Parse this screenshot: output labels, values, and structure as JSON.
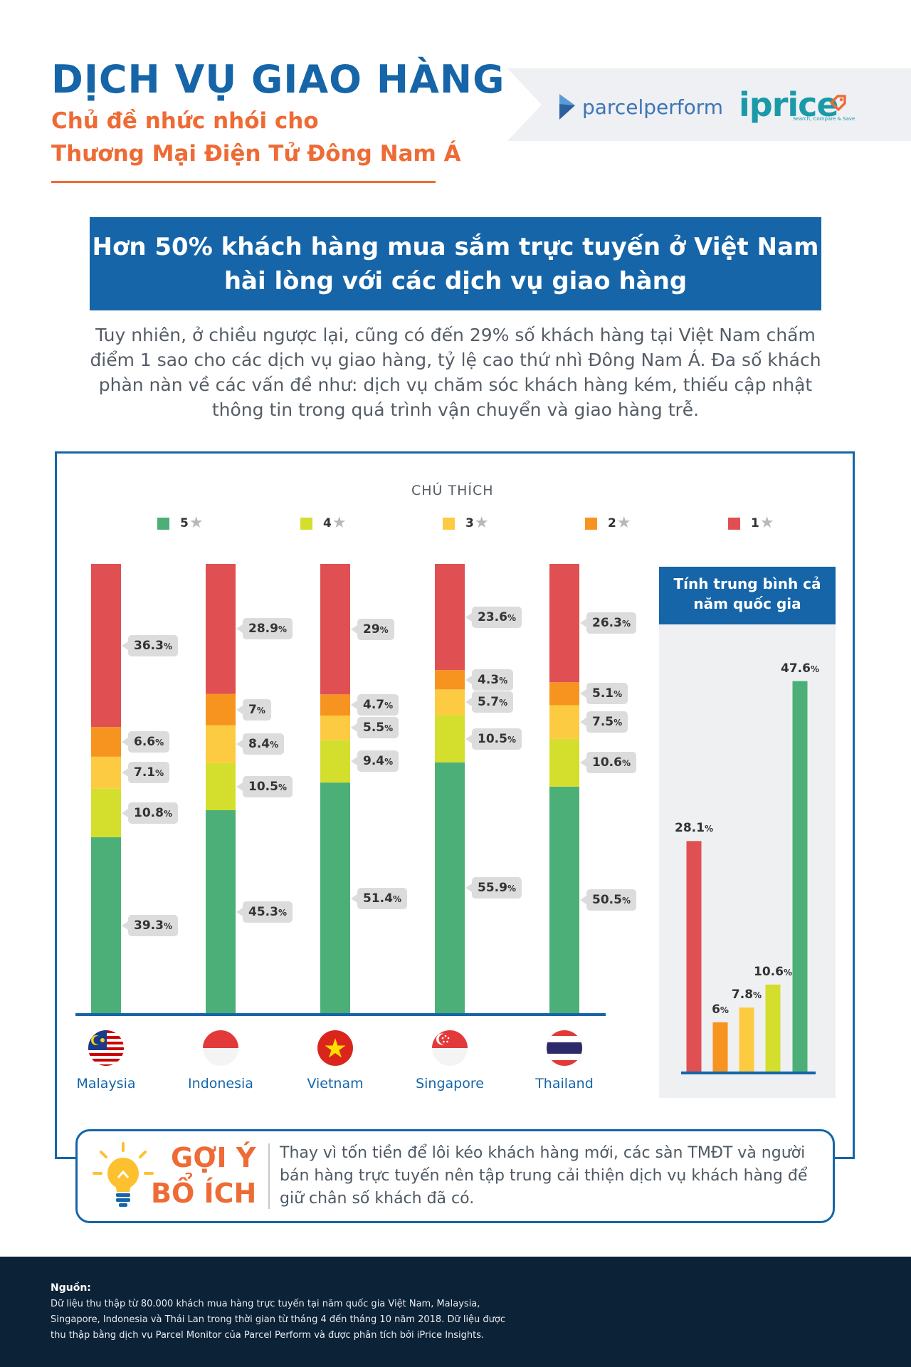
{
  "header": {
    "title": "DỊCH VỤ GIAO HÀNG",
    "subtitle_line1": "Chủ đề nhức nhói cho",
    "subtitle_line2": "Thương Mại Điện Tử Đông Nam Á"
  },
  "logos": {
    "parcelperform": "parcelperform",
    "iprice": "iprice",
    "iprice_tagline": "Search, Compare & Save"
  },
  "banner": {
    "line1": "Hơn 50% khách hàng mua sắm trực tuyến ở Việt Nam",
    "line2": "hài lòng với các dịch vụ giao hàng"
  },
  "intro": {
    "line1": "Tuy nhiên, ở chiều ngược lại, cũng có đến 29% số khách hàng tại Việt Nam chấm",
    "line2": "điểm 1 sao cho các dịch vụ giao hàng, tỷ lệ cao thứ nhì Đông Nam Á. Đa số khách",
    "line3": "phàn nàn về các vấn đề như: dịch vụ chăm sóc khách hàng kém, thiếu cập nhật",
    "line4": "thông tin trong quá trình vận chuyển và giao hàng trễ."
  },
  "legend": {
    "title": "CHÚ THÍCH",
    "items": [
      {
        "label": "5",
        "color": "#4caf78"
      },
      {
        "label": "4",
        "color": "#d3df2c"
      },
      {
        "label": "3",
        "color": "#fdcb42"
      },
      {
        "label": "2",
        "color": "#f79420"
      },
      {
        "label": "1",
        "color": "#e05052"
      }
    ],
    "star": "★"
  },
  "chart_data": [
    {
      "type": "bar",
      "stacked": true,
      "title": "",
      "categories": [
        "Malaysia",
        "Indonesia",
        "Vietnam",
        "Singapore",
        "Thailand"
      ],
      "series": [
        {
          "name": "5",
          "color": "#4caf78",
          "values": [
            39.3,
            45.3,
            51.4,
            55.9,
            50.5
          ]
        },
        {
          "name": "4",
          "color": "#d3df2c",
          "values": [
            10.8,
            10.5,
            9.4,
            10.5,
            10.6
          ]
        },
        {
          "name": "3",
          "color": "#fdcb42",
          "values": [
            7.1,
            8.4,
            5.5,
            5.7,
            7.5
          ]
        },
        {
          "name": "2",
          "color": "#f79420",
          "values": [
            6.6,
            7,
            4.7,
            4.3,
            5.1
          ]
        },
        {
          "name": "1",
          "color": "#e05052",
          "values": [
            36.3,
            28.9,
            29,
            23.6,
            26.3
          ]
        }
      ],
      "value_labels": [
        [
          "39.3",
          "10.8",
          "7.1",
          "6.6",
          "36.3"
        ],
        [
          "45.3",
          "10.5",
          "8.4",
          "7",
          "28.9"
        ],
        [
          "51.4",
          "9.4",
          "5.5",
          "4.7",
          "29"
        ],
        [
          "55.9",
          "10.5",
          "5.7",
          "4.3",
          "23.6"
        ],
        [
          "50.5",
          "10.6",
          "7.5",
          "5.1",
          "26.3"
        ]
      ],
      "unit": "%",
      "ylim": [
        0,
        100
      ]
    },
    {
      "type": "bar",
      "title": "Tính trung bình cả năm quốc gia",
      "title_line1": "Tính trung bình cả",
      "title_line2": "năm quốc gia",
      "categories": [
        "1",
        "2",
        "3",
        "4",
        "5"
      ],
      "values": [
        28.1,
        6,
        7.8,
        10.6,
        47.6
      ],
      "value_labels": [
        "28.1",
        "6",
        "7.8",
        "10.6",
        "47.6"
      ],
      "colors": [
        "#e05052",
        "#f79420",
        "#fdcb42",
        "#d3df2c",
        "#4caf78"
      ],
      "unit": "%",
      "ylim": [
        0,
        50
      ]
    }
  ],
  "tip": {
    "title_line1": "GỢI Ý",
    "title_line2": "BỔ ÍCH",
    "line1": "Thay vì tốn tiền để lôi kéo khách hàng mới, các sàn TMĐT và người",
    "line2": "bán hàng trực tuyến nên tập trung cải thiện dịch vụ khách hàng để",
    "line3": "giữ chân số khách đã có."
  },
  "footer": {
    "label": "Nguồn:",
    "line1": "Dữ liệu thu thập từ 80.000 khách mua hàng trực tuyến tại năm quốc gia Việt Nam, Malaysia,",
    "line2": "Singapore, Indonesia và Thái Lan trong thời gian từ tháng 4 đến tháng 10 năm 2018. Dữ liệu được",
    "line3": "thu thập bằng dịch vụ Parcel Monitor của Parcel Perform và được phân tích bởi iPrice Insights."
  }
}
